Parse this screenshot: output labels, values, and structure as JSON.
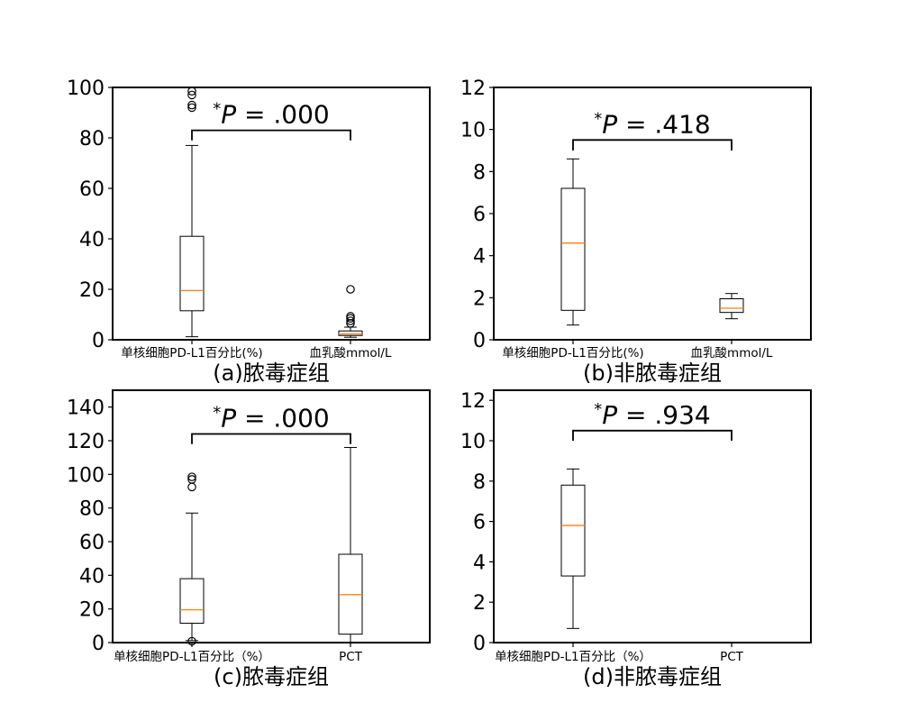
{
  "figure": {
    "panels": [
      {
        "caption": "(a)脓毒症组",
        "p_label": "P = .000"
      },
      {
        "caption": "(b)非脓毒症组",
        "p_label": "P = .418"
      },
      {
        "caption": "(c)脓毒症组",
        "p_label": "P = .000"
      },
      {
        "caption": "(d)非脓毒症组",
        "p_label": "P = .934"
      }
    ]
  },
  "chart_data": [
    {
      "type": "box",
      "title": "(a)脓毒症组",
      "annotation": "*P = .000",
      "categories": [
        "单核细胞PD-L1百分比(%)",
        "血乳酸mmol/L"
      ],
      "boxes": [
        {
          "name": "单核细胞PD-L1百分比(%)",
          "whisker_low": 1.2,
          "q1": 11.5,
          "median": 19.5,
          "q3": 41,
          "whisker_high": 77,
          "outliers": [
            92,
            93,
            97,
            98.5
          ]
        },
        {
          "name": "血乳酸mmol/L",
          "whisker_low": 1.0,
          "q1": 1.7,
          "median": 2.3,
          "q3": 3.5,
          "whisker_high": 5.0,
          "outliers": [
            6.5,
            7.5,
            8.5,
            9.3,
            20
          ]
        }
      ],
      "ylim": [
        0,
        100
      ],
      "yticks": [
        0,
        20,
        40,
        60,
        80,
        100
      ],
      "bracket_y": 83,
      "bracket_drop": 4
    },
    {
      "type": "box",
      "title": "(b)非脓毒症组",
      "annotation": "*P = .418",
      "categories": [
        "单核细胞PD-L1百分比(%)",
        "血乳酸mmol/L"
      ],
      "boxes": [
        {
          "name": "单核细胞PD-L1百分比(%)",
          "whisker_low": 0.7,
          "q1": 1.4,
          "median": 4.6,
          "q3": 7.2,
          "whisker_high": 8.6,
          "outliers": []
        },
        {
          "name": "血乳酸mmol/L",
          "whisker_low": 1.0,
          "q1": 1.3,
          "median": 1.5,
          "q3": 1.95,
          "whisker_high": 2.2,
          "outliers": []
        }
      ],
      "ylim": [
        0,
        12
      ],
      "yticks": [
        0,
        2,
        4,
        6,
        8,
        10,
        12
      ],
      "bracket_y": 9.5,
      "bracket_drop": 0.5
    },
    {
      "type": "box",
      "title": "(c)脓毒症组",
      "annotation": "*P = .000",
      "categories": [
        "单核细胞PD-L1百分比（%）",
        "PCT"
      ],
      "boxes": [
        {
          "name": "单核细胞PD-L1百分比（%）",
          "whisker_low": 1.2,
          "q1": 11.5,
          "median": 19.5,
          "q3": 38,
          "whisker_high": 77,
          "outliers": [
            0.8,
            92.5,
            97,
            98.5
          ]
        },
        {
          "name": "PCT",
          "whisker_low": 0,
          "q1": 5,
          "median": 28.5,
          "q3": 52.5,
          "whisker_high": 116,
          "outliers": []
        }
      ],
      "ylim": [
        0,
        150
      ],
      "yticks": [
        0,
        20,
        40,
        60,
        80,
        100,
        120,
        140
      ],
      "bracket_y": 124,
      "bracket_drop": 6
    },
    {
      "type": "box",
      "title": "(d)非脓毒症组",
      "annotation": "*P = .934",
      "categories": [
        "单核细胞PD-L1百分比（%）",
        "PCT"
      ],
      "boxes": [
        {
          "name": "单核细胞PD-L1百分比（%）",
          "whisker_low": 0.7,
          "q1": 3.3,
          "median": 5.8,
          "q3": 7.8,
          "whisker_high": 8.6,
          "outliers": []
        },
        {
          "name": "PCT",
          "whisker_low": 0,
          "q1": 0,
          "median": 0,
          "q3": 0,
          "whisker_high": 0,
          "outliers": []
        }
      ],
      "ylim": [
        0,
        12.5
      ],
      "yticks": [
        0,
        2,
        4,
        6,
        8,
        10,
        12
      ],
      "bracket_y": 10.5,
      "bracket_drop": 0.5
    }
  ],
  "colors": {
    "median": "#ff7f0e",
    "box": "#000000",
    "background": "#ffffff"
  }
}
